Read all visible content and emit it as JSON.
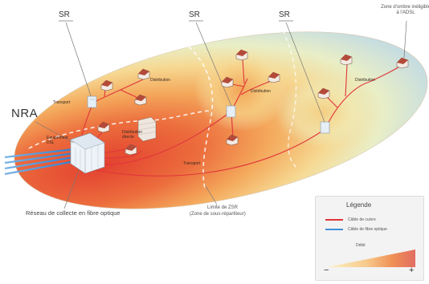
{
  "labels": {
    "sr": "SR",
    "nra": "NRA",
    "zone_ineligible": "Zone d'ombre inéligible à l'ADSL",
    "transport": "Transport",
    "distribution": "Distribution",
    "equipement": "Equipement DSL",
    "distribution_directe": "Distribution directe",
    "reseau_collecte": "Réseau de collecte en fibre optique",
    "limite_zsr": "Limite de ZSR",
    "zone_sous_repartiteur": "(Zone de sous-répartiteur)"
  },
  "legend": {
    "title": "Légende",
    "copper": "Câble de cuivre",
    "fiber": "Câble de fibre optique",
    "debit": "Débit",
    "minus": "−",
    "plus": "+"
  },
  "colors": {
    "copper_line": "#e0353b",
    "fiber_line": "#3f8fd9",
    "zone_high": "#e8553a",
    "zone_mid": "#f6b15f",
    "zone_low": "#f7efb6",
    "zone_far": "#cfe6cf",
    "zone_outer": "#bfd9ea"
  }
}
